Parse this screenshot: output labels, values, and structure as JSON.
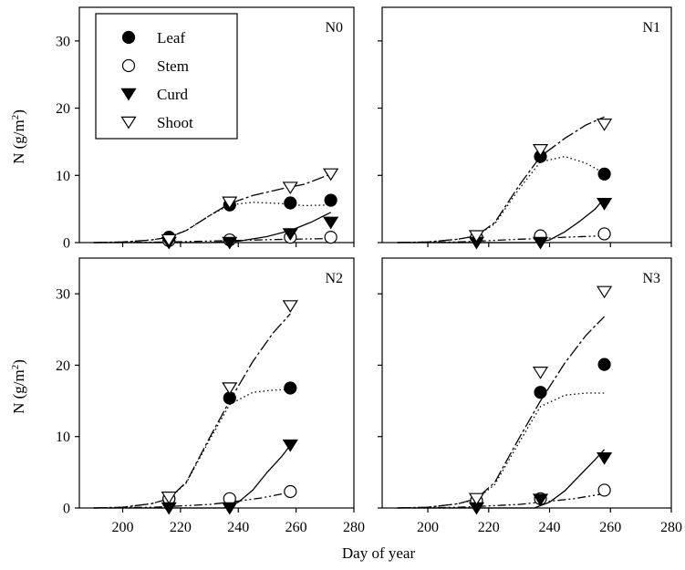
{
  "figure": {
    "xlabel": "Day of year",
    "ylabel_prefix": "N (g/m",
    "ylabel_sup": "2",
    "ylabel_suffix": ")"
  },
  "legend": {
    "entries": [
      {
        "label": "Leaf",
        "series": "Leaf"
      },
      {
        "label": "Stem",
        "series": "Stem"
      },
      {
        "label": "Curd",
        "series": "Curd"
      },
      {
        "label": "Shoot",
        "series": "Shoot"
      }
    ]
  },
  "chart_data": [
    {
      "type": "scatter",
      "panel_label": "N0",
      "xlabel": "Day of year",
      "ylabel": "N (g/m2)",
      "xlim": [
        185,
        280
      ],
      "ylim": [
        0,
        35
      ],
      "xticks": [
        200,
        220,
        240,
        260,
        280
      ],
      "yticks": [
        0,
        10,
        20,
        30
      ],
      "series": [
        {
          "name": "Leaf",
          "marker": "circle-filled",
          "points": [
            [
              216,
              0.8
            ],
            [
              237,
              5.6
            ],
            [
              258,
              5.9
            ],
            [
              272,
              6.3
            ]
          ],
          "fit": [
            [
              190,
              0
            ],
            [
              200,
              0.1
            ],
            [
              210,
              0.4
            ],
            [
              216,
              0.8
            ],
            [
              222,
              1.8
            ],
            [
              230,
              4.0
            ],
            [
              237,
              5.6
            ],
            [
              245,
              6.0
            ],
            [
              255,
              5.8
            ],
            [
              263,
              5.5
            ],
            [
              272,
              5.6
            ]
          ]
        },
        {
          "name": "Stem",
          "marker": "circle-open",
          "points": [
            [
              216,
              0.3
            ],
            [
              237,
              0.4
            ],
            [
              258,
              0.8
            ],
            [
              272,
              0.8
            ]
          ],
          "fit": [
            [
              190,
              0
            ],
            [
              210,
              0.05
            ],
            [
              216,
              0.1
            ],
            [
              237,
              0.3
            ],
            [
              258,
              0.5
            ],
            [
              272,
              0.6
            ]
          ]
        },
        {
          "name": "Curd",
          "marker": "triangle-down-filled",
          "points": [
            [
              216,
              0.0
            ],
            [
              237,
              0.0
            ],
            [
              258,
              1.3
            ],
            [
              272,
              3.0
            ]
          ],
          "fit": [
            [
              190,
              0
            ],
            [
              230,
              0
            ],
            [
              240,
              0.2
            ],
            [
              250,
              0.9
            ],
            [
              258,
              1.8
            ],
            [
              265,
              3.0
            ],
            [
              272,
              4.5
            ]
          ]
        },
        {
          "name": "Shoot",
          "marker": "triangle-down-open",
          "points": [
            [
              216,
              0.4
            ],
            [
              237,
              6.0
            ],
            [
              258,
              8.2
            ],
            [
              272,
              10.2
            ]
          ],
          "fit": [
            [
              190,
              0
            ],
            [
              200,
              0.1
            ],
            [
              210,
              0.4
            ],
            [
              216,
              0.8
            ],
            [
              222,
              1.8
            ],
            [
              230,
              4.0
            ],
            [
              237,
              5.8
            ],
            [
              245,
              7.0
            ],
            [
              255,
              8.0
            ],
            [
              263,
              8.7
            ],
            [
              272,
              10.2
            ]
          ]
        }
      ]
    },
    {
      "type": "scatter",
      "panel_label": "N1",
      "xlabel": "Day of year",
      "ylabel": "N (g/m2)",
      "xlim": [
        185,
        280
      ],
      "ylim": [
        0,
        35
      ],
      "xticks": [
        200,
        220,
        240,
        260,
        280
      ],
      "yticks": [
        0,
        10,
        20,
        30
      ],
      "series": [
        {
          "name": "Leaf",
          "marker": "circle-filled",
          "points": [
            [
              216,
              0.8
            ],
            [
              237,
              12.8
            ],
            [
              258,
              10.2
            ]
          ],
          "fit": [
            [
              190,
              0
            ],
            [
              200,
              0.1
            ],
            [
              210,
              0.5
            ],
            [
              216,
              1.0
            ],
            [
              222,
              2.8
            ],
            [
              230,
              8.0
            ],
            [
              237,
              12.0
            ],
            [
              245,
              12.8
            ],
            [
              252,
              11.8
            ],
            [
              258,
              10.3
            ]
          ]
        },
        {
          "name": "Stem",
          "marker": "circle-open",
          "points": [
            [
              216,
              0.8
            ],
            [
              237,
              1.0
            ],
            [
              258,
              1.3
            ]
          ],
          "fit": [
            [
              190,
              0
            ],
            [
              210,
              0.1
            ],
            [
              216,
              0.2
            ],
            [
              230,
              0.5
            ],
            [
              237,
              0.6
            ],
            [
              245,
              0.8
            ],
            [
              258,
              1.0
            ]
          ]
        },
        {
          "name": "Curd",
          "marker": "triangle-down-filled",
          "points": [
            [
              216,
              0.0
            ],
            [
              237,
              0.0
            ],
            [
              258,
              5.8
            ]
          ],
          "fit": [
            [
              190,
              0
            ],
            [
              235,
              0
            ],
            [
              240,
              0.4
            ],
            [
              245,
              1.6
            ],
            [
              250,
              3.2
            ],
            [
              255,
              5.0
            ],
            [
              258,
              6.6
            ]
          ]
        },
        {
          "name": "Shoot",
          "marker": "triangle-down-open",
          "points": [
            [
              216,
              1.0
            ],
            [
              237,
              13.8
            ],
            [
              258,
              17.6
            ]
          ],
          "fit": [
            [
              190,
              0
            ],
            [
              200,
              0.1
            ],
            [
              210,
              0.5
            ],
            [
              216,
              1.0
            ],
            [
              222,
              3.0
            ],
            [
              230,
              8.5
            ],
            [
              237,
              12.8
            ],
            [
              245,
              15.5
            ],
            [
              252,
              17.5
            ],
            [
              258,
              18.7
            ]
          ]
        }
      ]
    },
    {
      "type": "scatter",
      "panel_label": "N2",
      "xlabel": "Day of year",
      "ylabel": "N (g/m2)",
      "xlim": [
        185,
        280
      ],
      "ylim": [
        0,
        35
      ],
      "xticks": [
        200,
        220,
        240,
        260,
        280
      ],
      "yticks": [
        0,
        10,
        20,
        30
      ],
      "series": [
        {
          "name": "Leaf",
          "marker": "circle-filled",
          "points": [
            [
              216,
              1.3
            ],
            [
              237,
              15.4
            ],
            [
              258,
              16.8
            ]
          ],
          "fit": [
            [
              190,
              0
            ],
            [
              200,
              0.1
            ],
            [
              210,
              0.6
            ],
            [
              216,
              1.3
            ],
            [
              222,
              3.5
            ],
            [
              230,
              9.5
            ],
            [
              237,
              14.5
            ],
            [
              245,
              16.2
            ],
            [
              252,
              16.5
            ],
            [
              258,
              16.6
            ]
          ]
        },
        {
          "name": "Stem",
          "marker": "circle-open",
          "points": [
            [
              216,
              1.3
            ],
            [
              237,
              1.3
            ],
            [
              258,
              2.3
            ]
          ],
          "fit": [
            [
              190,
              0
            ],
            [
              210,
              0.1
            ],
            [
              216,
              0.2
            ],
            [
              230,
              0.5
            ],
            [
              237,
              0.8
            ],
            [
              248,
              1.4
            ],
            [
              258,
              2.2
            ]
          ]
        },
        {
          "name": "Curd",
          "marker": "triangle-down-filled",
          "points": [
            [
              216,
              0.0
            ],
            [
              237,
              0.0
            ],
            [
              258,
              8.8
            ]
          ],
          "fit": [
            [
              190,
              0
            ],
            [
              235,
              0
            ],
            [
              240,
              0.8
            ],
            [
              245,
              2.5
            ],
            [
              250,
              5.0
            ],
            [
              255,
              7.2
            ],
            [
              258,
              8.8
            ]
          ]
        },
        {
          "name": "Shoot",
          "marker": "triangle-down-open",
          "points": [
            [
              216,
              1.5
            ],
            [
              237,
              16.8
            ],
            [
              258,
              28.3
            ]
          ],
          "fit": [
            [
              190,
              0
            ],
            [
              200,
              0.1
            ],
            [
              210,
              0.6
            ],
            [
              216,
              1.3
            ],
            [
              222,
              3.6
            ],
            [
              230,
              9.8
            ],
            [
              237,
              15.0
            ],
            [
              245,
              20.5
            ],
            [
              252,
              24.5
            ],
            [
              258,
              27.2
            ]
          ]
        }
      ]
    },
    {
      "type": "scatter",
      "panel_label": "N3",
      "xlabel": "Day of year",
      "ylabel": "N (g/m2)",
      "xlim": [
        185,
        280
      ],
      "ylim": [
        0,
        35
      ],
      "xticks": [
        200,
        220,
        240,
        260,
        280
      ],
      "yticks": [
        0,
        10,
        20,
        30
      ],
      "series": [
        {
          "name": "Leaf",
          "marker": "circle-filled",
          "points": [
            [
              216,
              1.0
            ],
            [
              237,
              16.2
            ],
            [
              258,
              20.1
            ]
          ],
          "fit": [
            [
              190,
              0
            ],
            [
              200,
              0.1
            ],
            [
              210,
              0.6
            ],
            [
              216,
              1.2
            ],
            [
              222,
              3.3
            ],
            [
              230,
              9.2
            ],
            [
              237,
              14.2
            ],
            [
              245,
              15.8
            ],
            [
              252,
              16.1
            ],
            [
              258,
              16.1
            ]
          ]
        },
        {
          "name": "Stem",
          "marker": "circle-open",
          "points": [
            [
              216,
              1.0
            ],
            [
              237,
              1.3
            ],
            [
              258,
              2.5
            ]
          ],
          "fit": [
            [
              190,
              0
            ],
            [
              210,
              0.1
            ],
            [
              216,
              0.2
            ],
            [
              230,
              0.5
            ],
            [
              237,
              0.8
            ],
            [
              248,
              1.3
            ],
            [
              258,
              2.0
            ]
          ]
        },
        {
          "name": "Curd",
          "marker": "triangle-down-filled",
          "points": [
            [
              216,
              0.0
            ],
            [
              237,
              1.2
            ],
            [
              258,
              7.0
            ]
          ],
          "fit": [
            [
              190,
              0
            ],
            [
              235,
              0
            ],
            [
              240,
              0.8
            ],
            [
              245,
              2.4
            ],
            [
              250,
              4.6
            ],
            [
              255,
              6.8
            ],
            [
              258,
              8.2
            ]
          ]
        },
        {
          "name": "Shoot",
          "marker": "triangle-down-open",
          "points": [
            [
              216,
              1.3
            ],
            [
              237,
              19.0
            ],
            [
              258,
              30.3
            ]
          ],
          "fit": [
            [
              190,
              0
            ],
            [
              200,
              0.1
            ],
            [
              210,
              0.6
            ],
            [
              216,
              1.3
            ],
            [
              222,
              3.6
            ],
            [
              230,
              9.8
            ],
            [
              237,
              15.0
            ],
            [
              245,
              20.3
            ],
            [
              252,
              24.2
            ],
            [
              258,
              26.8
            ]
          ]
        }
      ]
    }
  ]
}
